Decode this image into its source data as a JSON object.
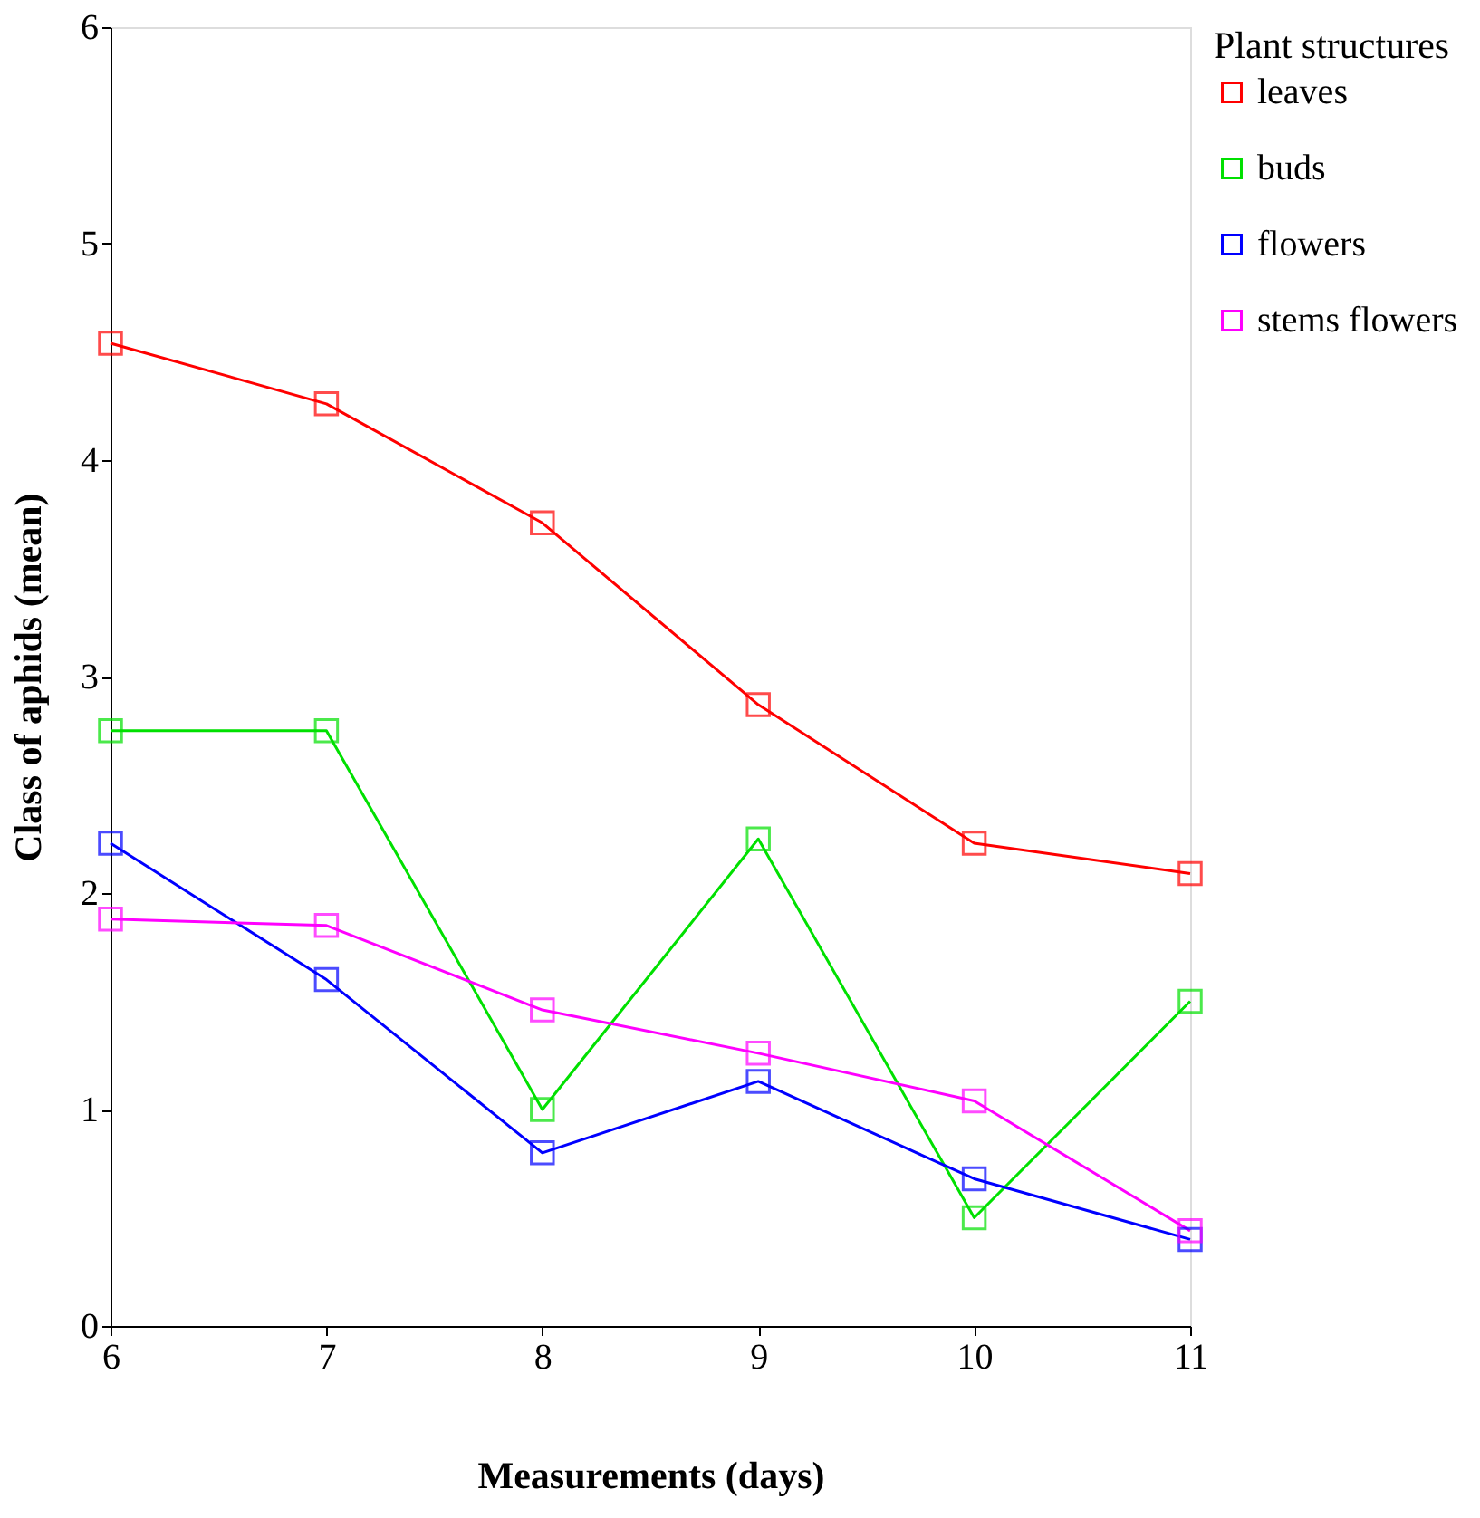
{
  "chart_data": {
    "type": "line",
    "xlabel": "Measurements (days)",
    "ylabel": "Class of aphids (mean)",
    "legend_title": "Plant structures",
    "x": [
      6,
      7,
      8,
      9,
      10,
      11
    ],
    "series": [
      {
        "name": "leaves",
        "color": "#ff0000",
        "values": [
          4.54,
          4.26,
          3.71,
          2.87,
          2.23,
          2.09
        ]
      },
      {
        "name": "buds",
        "color": "#00e000",
        "values": [
          2.75,
          2.75,
          1.0,
          2.25,
          0.5,
          1.5
        ]
      },
      {
        "name": "flowers",
        "color": "#0000ff",
        "values": [
          2.23,
          1.6,
          0.8,
          1.13,
          0.68,
          0.4
        ]
      },
      {
        "name": "stems flowers",
        "color": "#ff00ff",
        "values": [
          1.88,
          1.85,
          1.46,
          1.26,
          1.04,
          0.44
        ]
      }
    ],
    "xlim": [
      6,
      11
    ],
    "xticks": [
      6,
      7,
      8,
      9,
      10,
      11
    ],
    "ylim": [
      0,
      6
    ],
    "yticks": [
      0,
      1,
      2,
      3,
      4,
      5,
      6
    ],
    "grid": false,
    "legend": "right",
    "marker": "square",
    "line_style": "solid"
  }
}
